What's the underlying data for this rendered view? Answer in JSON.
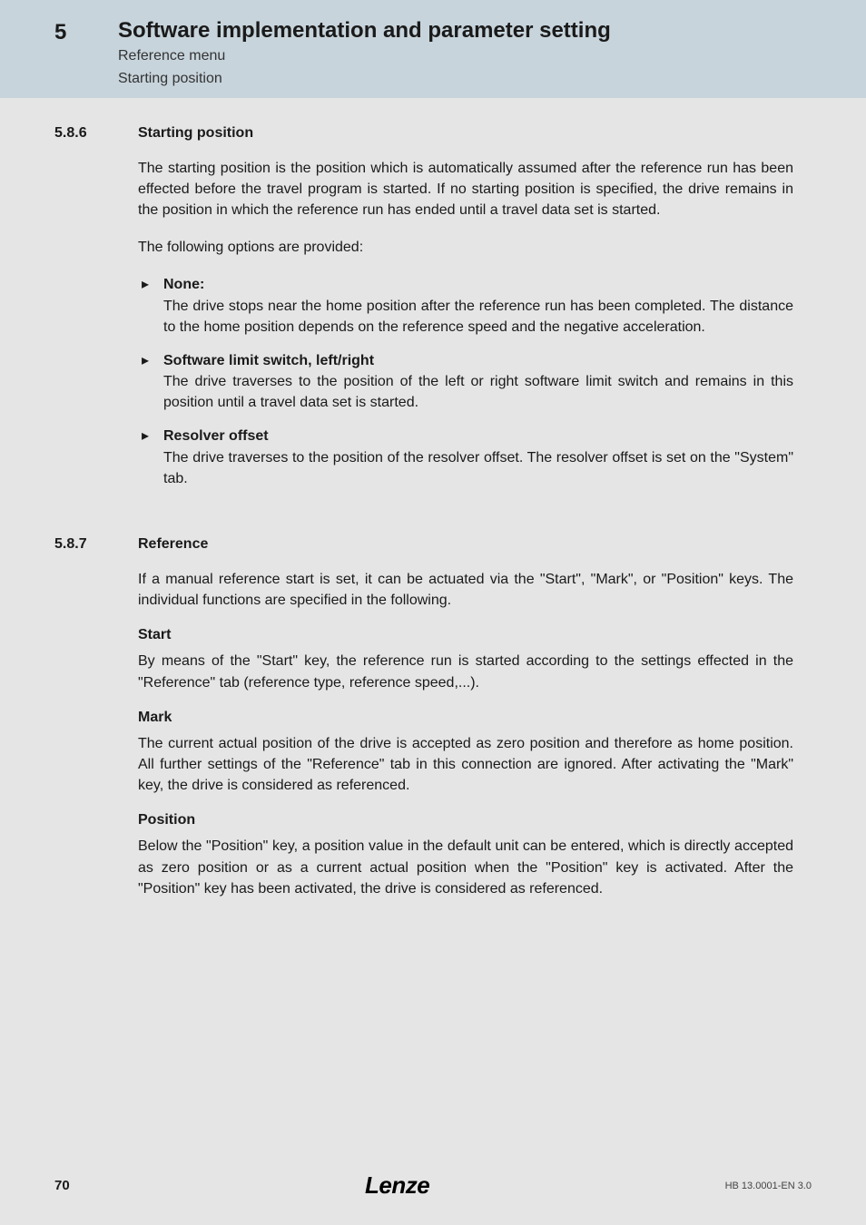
{
  "colors": {
    "header_band": "#c7d4dc",
    "page_bg": "#e5e5e5",
    "text": "#1a1a1a"
  },
  "typography": {
    "body_fontsize_pt": 12,
    "heading_fontsize_pt": 18,
    "font_family": "Segoe UI, Myriad Pro, Helvetica Neue, Arial, sans-serif"
  },
  "header": {
    "chapter_no": "5",
    "title": "Software implementation and parameter setting",
    "sub1": "Reference menu",
    "sub2": "Starting position"
  },
  "s586": {
    "num": "5.8.6",
    "heading": "Starting position",
    "p1": "The starting position is the position which is automatically assumed after the reference run has been effected before the travel program is started. If no starting position is specified, the drive remains in the position in which the reference run has ended until a travel data set is started.",
    "p2": "The following options are provided:",
    "items": [
      {
        "head": "None:",
        "body": "The drive stops near the home position after the reference run has been completed. The distance to the home position depends on the reference speed and the negative acceleration."
      },
      {
        "head": "Software limit switch, left/right",
        "body": "The drive traverses to the position of the left or right software limit switch and remains in this position until a travel data set is started."
      },
      {
        "head": "Resolver offset",
        "body": "The drive traverses to the position of the resolver offset. The resolver offset is set on the \"System\" tab."
      }
    ]
  },
  "s587": {
    "num": "5.8.7",
    "heading": "Reference",
    "p1": "If a manual reference start is set, it can be actuated via the \"Start\", \"Mark\", or \"Position\" keys. The individual functions are specified in the following.",
    "start_h": "Start",
    "start_p": "By means of the \"Start\" key, the reference run is started according to the settings effected in the \"Reference\" tab (reference type, reference speed,...).",
    "mark_h": "Mark",
    "mark_p": "The current actual position of the drive is accepted as zero position and therefore as home position. All further settings of the \"Reference\" tab in this connection are ignored. After activating the \"Mark\" key, the drive is considered as referenced.",
    "position_h": "Position",
    "position_p": "Below the \"Position\" key, a position value in the default unit can be entered, which is directly accepted as zero position or as a current actual position when the \"Position\" key is activated. After the \"Position\" key has been activated, the drive is considered as referenced."
  },
  "footer": {
    "page": "70",
    "logo": "Lenze",
    "meta": "HB 13.0001-EN   3.0"
  }
}
